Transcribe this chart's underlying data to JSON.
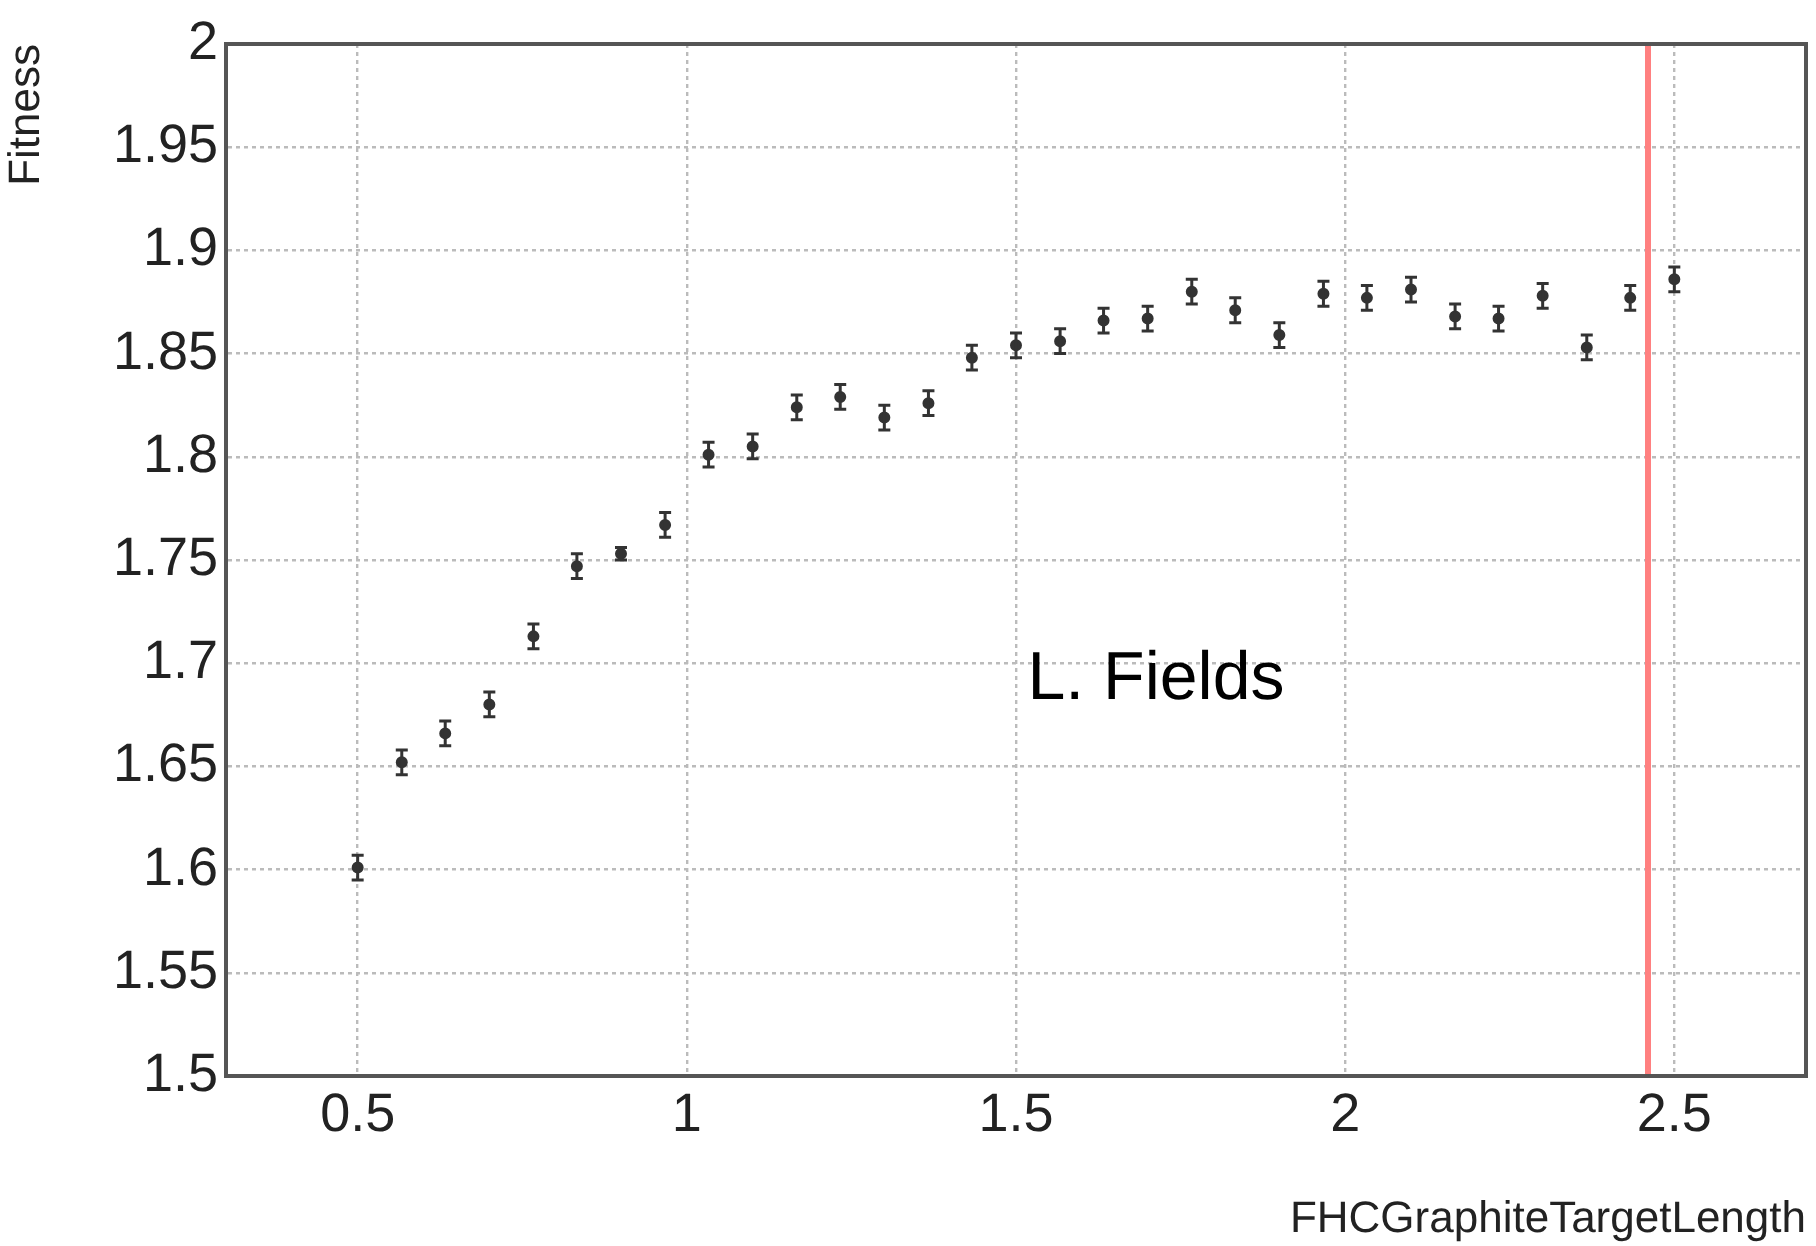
{
  "chart_data": {
    "type": "scatter",
    "xlabel": "FHCGraphiteTargetLength",
    "ylabel": "Fitness",
    "annotations": [
      "L. Fields"
    ],
    "series": [
      {
        "color": "#333333",
        "x": [
          0.5,
          0.567,
          0.633,
          0.7,
          0.767,
          0.833,
          0.9,
          0.967,
          1.033,
          1.1,
          1.167,
          1.233,
          1.3,
          1.367,
          1.433,
          1.5,
          1.567,
          1.633,
          1.7,
          1.767,
          1.833,
          1.9,
          1.967,
          2.033,
          2.1,
          2.167,
          2.233,
          2.3,
          2.367,
          2.433,
          2.5
        ],
        "values": [
          1.601,
          1.652,
          1.666,
          1.68,
          1.713,
          1.747,
          1.753,
          1.767,
          1.801,
          1.805,
          1.824,
          1.829,
          1.819,
          1.826,
          1.848,
          1.854,
          1.856,
          1.866,
          1.867,
          1.88,
          1.871,
          1.859,
          1.879,
          1.877,
          1.881,
          1.868,
          1.867,
          1.878,
          1.853,
          1.877,
          1.886
        ],
        "errors": [
          0.006,
          0.006,
          0.006,
          0.006,
          0.006,
          0.006,
          0.003,
          0.006,
          0.006,
          0.006,
          0.006,
          0.006,
          0.006,
          0.006,
          0.006,
          0.006,
          0.006,
          0.006,
          0.006,
          0.006,
          0.006,
          0.006,
          0.006,
          0.006,
          0.006,
          0.006,
          0.006,
          0.006,
          0.006,
          0.006,
          0.006
        ]
      }
    ],
    "xlim": [
      0.3,
      2.7
    ],
    "xticks": [
      0.5,
      1,
      1.5,
      2,
      2.5
    ],
    "ylim": [
      1.5,
      2
    ],
    "yticks": [
      1.5,
      1.55,
      1.6,
      1.65,
      1.7,
      1.75,
      1.8,
      1.85,
      1.9,
      1.95,
      2
    ],
    "ref_lines": [
      {
        "axis": "x",
        "value": 2.46,
        "color": "#ff8080"
      }
    ],
    "grid": true,
    "marker": "circle",
    "legend": false
  }
}
